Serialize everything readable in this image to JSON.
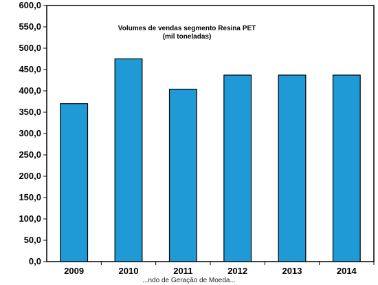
{
  "chart_data": {
    "type": "bar",
    "title": "Volumes de vendas segmento Resina PET",
    "subtitle": "(mil toneladas)",
    "categories": [
      "2009",
      "2010",
      "2011",
      "2012",
      "2013",
      "2014"
    ],
    "values": [
      370,
      475,
      404,
      437,
      437,
      437
    ],
    "ylim": [
      0,
      600
    ],
    "yticks": [
      "0,0",
      "50,0",
      "100,0",
      "150,0",
      "200,0",
      "250,0",
      "300,0",
      "350,0",
      "400,0",
      "450,0",
      "500,0",
      "550,0",
      "600,0"
    ],
    "grid": false,
    "bar_color": "#1f9ad6",
    "bar_stroke": "#000000"
  },
  "footer_caption": "...ndo de Geração de Moeda..."
}
